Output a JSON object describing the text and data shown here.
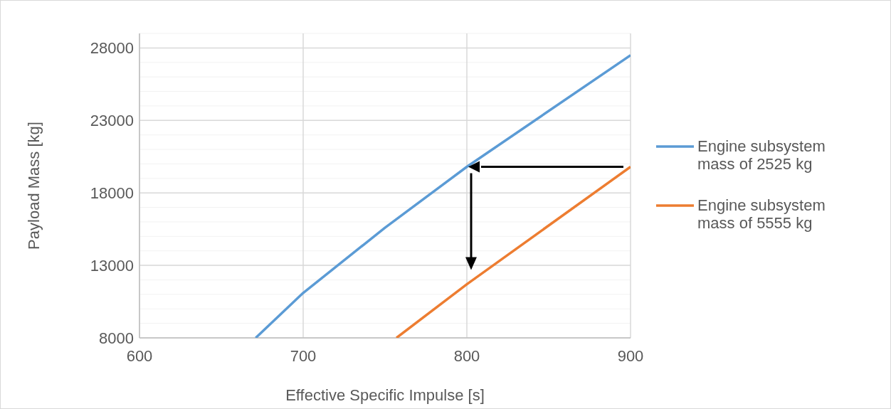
{
  "chart_data": {
    "type": "line",
    "xlabel": "Effective Specific Impulse [s]",
    "ylabel": "Payload Mass [kg]",
    "xlim": [
      600,
      900
    ],
    "xticks": [
      600,
      700,
      800,
      900
    ],
    "ylim": [
      8000,
      29000
    ],
    "yticks": [
      8000,
      13000,
      18000,
      23000,
      28000
    ],
    "grid": true,
    "legend": "right",
    "series": [
      {
        "name": "Engine subsystem mass of 2525 kg",
        "color": "#5b9bd5",
        "x": [
          671,
          700,
          750,
          800,
          900
        ],
        "values": [
          8000,
          11100,
          15600,
          19800,
          27500
        ]
      },
      {
        "name": "Engine subsystem mass of 5555 kg",
        "color": "#ed7d31",
        "x": [
          757,
          800,
          900
        ],
        "values": [
          8000,
          11700,
          19800
        ]
      }
    ]
  }
}
